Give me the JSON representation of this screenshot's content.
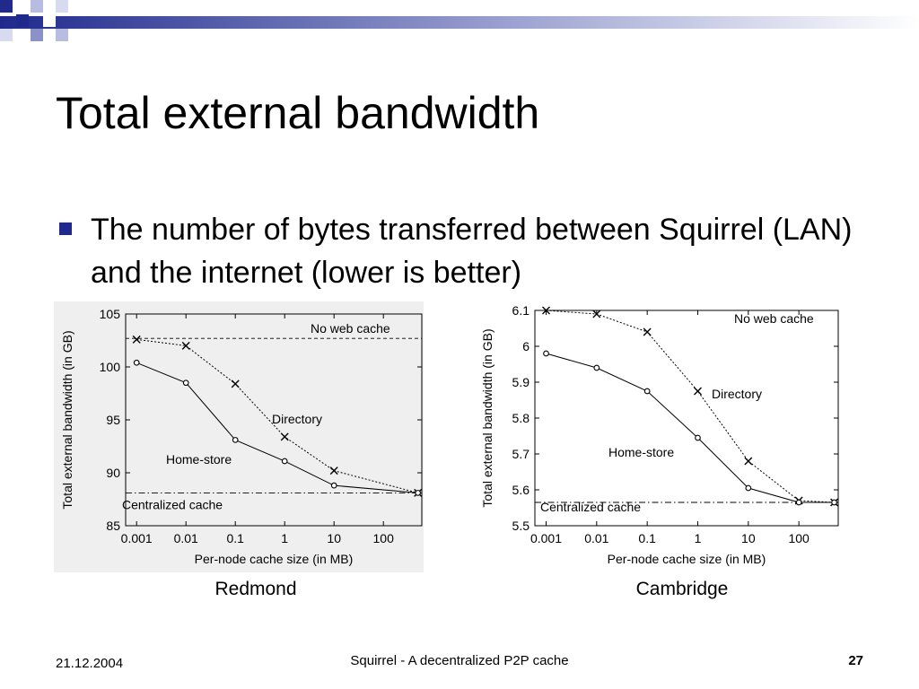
{
  "slide": {
    "title": "Total external bandwidth",
    "bullet": "The number of bytes transferred between Squirrel (LAN) and the internet (lower is better)"
  },
  "captions": {
    "left": "Redmond",
    "right": "Cambridge"
  },
  "footer": {
    "date": "21.12.2004",
    "center": "Squirrel - A decentralized P2P cache",
    "page": "27"
  },
  "colors": {
    "accent": "#1f2a8c",
    "accent_light": "#8a92c8",
    "line": "#000000"
  },
  "chart_data": [
    {
      "type": "line",
      "xlabel": "Per-node cache size (in MB)",
      "ylabel": "Total external bandwidth (in GB)",
      "x_scale": "log",
      "x_ticks": [
        "0.001",
        "0.01",
        "0.1",
        "1",
        "10",
        "100"
      ],
      "x_tick_values": [
        0.001,
        0.01,
        0.1,
        1,
        10,
        100
      ],
      "xlim": [
        0.0006,
        600
      ],
      "ylim": [
        85,
        105
      ],
      "y_ticks": [
        85,
        90,
        95,
        100,
        105
      ],
      "y_tick_labels": [
        "85",
        "90",
        "95",
        "100",
        "105"
      ],
      "series": [
        {
          "name": "Directory",
          "marker": "x",
          "dash": "dotted",
          "x": [
            0.001,
            0.01,
            0.1,
            1,
            10,
            500
          ],
          "y": [
            102.6,
            102.0,
            98.4,
            93.4,
            90.2,
            88.1
          ]
        },
        {
          "name": "Home-store",
          "marker": "o",
          "dash": "solid",
          "x": [
            0.001,
            0.01,
            0.1,
            1,
            10,
            500
          ],
          "y": [
            100.4,
            98.5,
            93.1,
            91.1,
            88.8,
            88.1
          ]
        }
      ],
      "reference_lines": [
        {
          "name": "No web cache",
          "y": 102.7,
          "style": "dashed"
        },
        {
          "name": "Centralized cache",
          "y": 88.1,
          "style": "dashdot"
        }
      ]
    },
    {
      "type": "line",
      "xlabel": "Per-node cache size (in MB)",
      "ylabel": "Total external bandwidth (in GB)",
      "x_scale": "log",
      "x_ticks": [
        "0.001",
        "0.01",
        "0.1",
        "1",
        "10",
        "100"
      ],
      "x_tick_values": [
        0.001,
        0.01,
        0.1,
        1,
        10,
        100
      ],
      "xlim": [
        0.0006,
        600
      ],
      "ylim": [
        5.5,
        6.1
      ],
      "y_ticks": [
        5.5,
        5.6,
        5.7,
        5.8,
        5.9,
        6.0,
        6.1
      ],
      "y_tick_labels": [
        "5.5",
        "5.6",
        "5.7",
        "5.8",
        "5.9",
        "6",
        "6.1"
      ],
      "series": [
        {
          "name": "Directory",
          "marker": "x",
          "dash": "dotted",
          "x": [
            0.001,
            0.01,
            0.1,
            1,
            10,
            100,
            500
          ],
          "y": [
            6.1,
            6.09,
            6.04,
            5.875,
            5.68,
            5.57,
            5.565
          ]
        },
        {
          "name": "Home-store",
          "marker": "o",
          "dash": "solid",
          "x": [
            0.001,
            0.01,
            0.1,
            1,
            10,
            100,
            500
          ],
          "y": [
            5.98,
            5.94,
            5.875,
            5.745,
            5.605,
            5.565,
            5.565
          ]
        }
      ],
      "reference_lines": [
        {
          "name": "No web cache",
          "y": 6.1,
          "style": "dashed"
        },
        {
          "name": "Centralized cache",
          "y": 5.565,
          "style": "dashdot"
        }
      ]
    }
  ]
}
